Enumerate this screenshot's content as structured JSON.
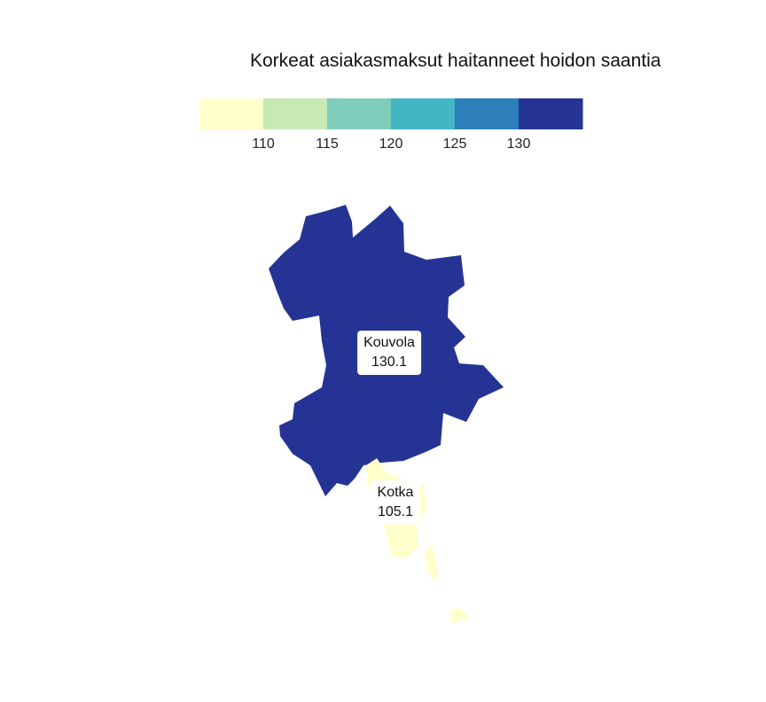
{
  "title": "Korkeat asiakasmaksut haitanneet hoidon saantia",
  "legend": {
    "colors": [
      "#ffffcc",
      "#c7e9b4",
      "#7fcdbb",
      "#41b6c4",
      "#2c7fb8",
      "#253494"
    ],
    "ticks": [
      "110",
      "115",
      "120",
      "125",
      "130"
    ]
  },
  "regions": [
    {
      "name": "Kouvola",
      "value": "130.1",
      "color": "#253494"
    },
    {
      "name": "Kotka",
      "value": "105.1",
      "color": "#ffffcc"
    }
  ]
}
